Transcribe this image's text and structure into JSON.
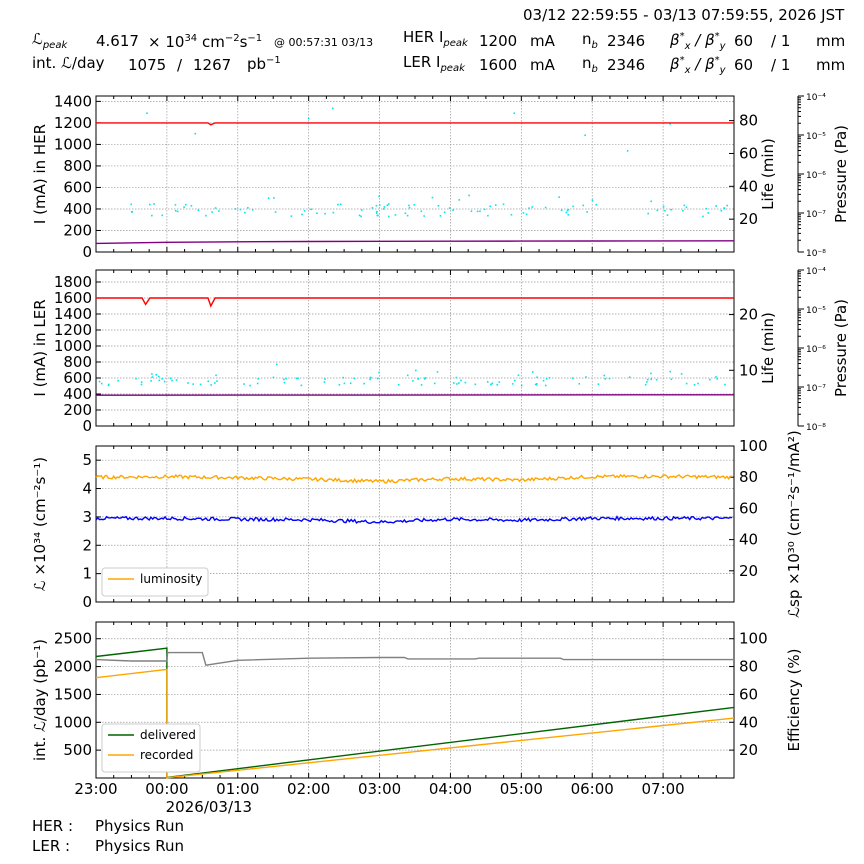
{
  "header": {
    "time_range": "03/12 22:59:55 - 03/13 07:59:55, 2026 JST",
    "lpeak_label": "ℒ",
    "lpeak_sub": "peak",
    "lpeak_value": "4.617",
    "lpeak_unit_pre": "× 10",
    "lpeak_unit_exp": "34",
    "lpeak_unit_cm": "cm",
    "lpeak_unit_cm_exp": "−2",
    "lpeak_unit_s": "s",
    "lpeak_unit_s_exp": "−1",
    "lpeak_time": "@ 00:57:31 03/13",
    "intl_label": "int. ℒ/day",
    "intl_value": "1075",
    "intl_sep": "/",
    "intl_total": "1267",
    "intl_unit": "pb",
    "intl_unit_exp": "−1",
    "her_label": "HER I",
    "her_sub": "peak",
    "her_value": "1200",
    "her_unit": "mA",
    "ler_label": "LER I",
    "ler_sub": "peak",
    "ler_value": "1600",
    "ler_unit": "mA",
    "nb_label": "n",
    "nb_sub": "b",
    "her_nb": "2346",
    "ler_nb": "2346",
    "beta_label": "β",
    "beta_sup": "*",
    "beta_x": "x",
    "beta_sep": " / β",
    "beta_y": "y",
    "her_beta_x": "60",
    "her_beta_y": "/ 1",
    "ler_beta_x": "60",
    "ler_beta_y": "/ 1",
    "beta_unit": "mm"
  },
  "footer": {
    "her_label": "HER :",
    "her_status": "Physics Run",
    "ler_label": "LER :",
    "ler_status": "Physics Run"
  },
  "chart_data": [
    {
      "type": "line",
      "id": "her",
      "x_ticks": [
        "23:00",
        "00:00",
        "01:00",
        "02:00",
        "03:00",
        "04:00",
        "05:00",
        "06:00",
        "07:00"
      ],
      "xlim_hours": [
        23.0,
        32.0
      ],
      "ylabel": "I (mA) in HER",
      "ylim": [
        0,
        1450
      ],
      "yticks": [
        0,
        200,
        400,
        600,
        800,
        1000,
        1200,
        1400
      ],
      "y2label": "Life (min)",
      "y2lim": [
        0,
        95
      ],
      "y2ticks": [
        20,
        40,
        60,
        80
      ],
      "y3label": "Pressure (Pa)",
      "y3ticks": [
        "10⁻⁸",
        "10⁻⁷",
        "10⁻⁶",
        "10⁻⁵",
        "10⁻⁴"
      ],
      "series": [
        {
          "color": "#ff0000",
          "axis": "y",
          "values": [
            [
              23.0,
              1200
            ],
            [
              24.5,
              1200
            ],
            [
              24.58,
              1200
            ],
            [
              24.62,
              1182
            ],
            [
              24.68,
              1200
            ],
            [
              28.0,
              1200
            ],
            [
              32.0,
              1200
            ]
          ]
        },
        {
          "color": "#800080",
          "axis": "y",
          "values": [
            [
              23.0,
              80
            ],
            [
              24.0,
              90
            ],
            [
              25.0,
              95
            ],
            [
              26.0,
              98
            ],
            [
              27.0,
              99
            ],
            [
              28.0,
              100
            ],
            [
              29.0,
              101
            ],
            [
              30.0,
              102
            ],
            [
              31.0,
              103
            ],
            [
              32.0,
              104
            ]
          ]
        }
      ],
      "scatter": {
        "color": "#00e5ee",
        "axis": "y",
        "mean": 390,
        "spread": 60,
        "outliers": [
          [
            23.72,
            1290
          ],
          [
            26.34,
            1335
          ],
          [
            26.0,
            1240
          ],
          [
            28.9,
            1290
          ],
          [
            24.4,
            1100
          ],
          [
            29.9,
            1085
          ],
          [
            30.5,
            940
          ],
          [
            31.1,
            1190
          ]
        ]
      }
    },
    {
      "type": "line",
      "id": "ler",
      "ylabel": "I (mA) in LER",
      "ylim": [
        0,
        1950
      ],
      "yticks": [
        0,
        200,
        400,
        600,
        800,
        1000,
        1200,
        1400,
        1600,
        1800
      ],
      "y2label": "Life (min)",
      "y2lim": [
        0,
        28
      ],
      "y2ticks": [
        10,
        20
      ],
      "y3label": "Pressure (Pa)",
      "y3ticks": [
        "10⁻⁸",
        "10⁻⁷",
        "10⁻⁶",
        "10⁻⁵",
        "10⁻⁴"
      ],
      "series": [
        {
          "color": "#ff0000",
          "axis": "y",
          "values": [
            [
              23.0,
              1600
            ],
            [
              23.65,
              1600
            ],
            [
              23.7,
              1520
            ],
            [
              23.76,
              1600
            ],
            [
              24.58,
              1600
            ],
            [
              24.62,
              1500
            ],
            [
              24.68,
              1600
            ],
            [
              32.0,
              1600
            ]
          ]
        },
        {
          "color": "#800080",
          "axis": "y",
          "values": [
            [
              23.0,
              385
            ],
            [
              32.0,
              390
            ]
          ]
        }
      ],
      "scatter": {
        "color": "#00e5ee",
        "axis": "y",
        "mean": 560,
        "spread": 55,
        "outliers": [
          [
            25.55,
            770
          ],
          [
            23.85,
            640
          ],
          [
            31.1,
            680
          ]
        ]
      }
    },
    {
      "type": "line",
      "id": "lumi",
      "ylabel": "ℒ ×10³⁴ (cm⁻²s⁻¹)",
      "ylim": [
        0,
        5.5
      ],
      "yticks": [
        0,
        1,
        2,
        3,
        4,
        5
      ],
      "y2label": "ℒsp ×10³⁰ (cm⁻²s⁻¹/mA²)",
      "y2lim": [
        0,
        100
      ],
      "y2ticks": [
        20,
        40,
        60,
        80,
        100
      ],
      "legend": {
        "position": "lower-left",
        "entries": [
          {
            "name": "luminosity",
            "color": "#ffa500"
          }
        ]
      },
      "series": [
        {
          "name": "luminosity",
          "color": "#ffa500",
          "axis": "y",
          "values": [
            [
              23.0,
              4.4
            ],
            [
              24.0,
              4.42
            ],
            [
              25.0,
              4.38
            ],
            [
              26.0,
              4.33
            ],
            [
              27.0,
              4.25
            ],
            [
              28.0,
              4.35
            ],
            [
              29.0,
              4.3
            ],
            [
              30.0,
              4.42
            ],
            [
              31.0,
              4.43
            ],
            [
              32.0,
              4.4
            ]
          ]
        },
        {
          "color": "#0000ff",
          "axis": "y",
          "values": [
            [
              23.0,
              2.95
            ],
            [
              24.0,
              2.95
            ],
            [
              25.0,
              2.92
            ],
            [
              26.0,
              2.9
            ],
            [
              27.0,
              2.82
            ],
            [
              28.0,
              2.92
            ],
            [
              29.0,
              2.88
            ],
            [
              30.0,
              2.95
            ],
            [
              31.0,
              2.95
            ],
            [
              32.0,
              2.95
            ]
          ]
        }
      ]
    },
    {
      "type": "line",
      "id": "intl",
      "ylabel": "int. ℒ/day (pb⁻¹)",
      "ylim": [
        0,
        2800
      ],
      "yticks": [
        500,
        1000,
        1500,
        2000,
        2500
      ],
      "y2label": "Efficiency (%)",
      "y2lim": [
        0,
        112
      ],
      "y2ticks": [
        20,
        40,
        60,
        80,
        100
      ],
      "xlabel_date": "2026/03/13",
      "legend": {
        "position": "lower-left",
        "entries": [
          {
            "name": "delivered",
            "color": "#006400"
          },
          {
            "name": "recorded",
            "color": "#ffa500"
          }
        ]
      },
      "series": [
        {
          "name": "delivered",
          "color": "#006400",
          "axis": "y",
          "values": [
            [
              23.0,
              2180
            ],
            [
              24.0,
              2330
            ],
            [
              24.0,
              10
            ],
            [
              32.0,
              1267
            ]
          ]
        },
        {
          "name": "recorded",
          "color": "#ffa500",
          "axis": "y",
          "values": [
            [
              23.0,
              1800
            ],
            [
              24.0,
              1950
            ],
            [
              24.0,
              5
            ],
            [
              32.0,
              1075
            ]
          ]
        },
        {
          "name": "efficiency",
          "color": "#808080",
          "axis": "y2",
          "values": [
            [
              23.0,
              85
            ],
            [
              23.5,
              84
            ],
            [
              24.0,
              84
            ],
            [
              24.01,
              90
            ],
            [
              24.5,
              90
            ],
            [
              24.55,
              81
            ],
            [
              25.0,
              84.5
            ],
            [
              26.0,
              86
            ],
            [
              27.0,
              86.5
            ],
            [
              27.35,
              86.5
            ],
            [
              27.4,
              85.5
            ],
            [
              28.0,
              85.5
            ],
            [
              28.35,
              85.5
            ],
            [
              28.4,
              86
            ],
            [
              29.0,
              86
            ],
            [
              29.55,
              86
            ],
            [
              29.6,
              85
            ],
            [
              30.0,
              85
            ],
            [
              31.0,
              85
            ],
            [
              32.0,
              85
            ]
          ]
        }
      ]
    }
  ]
}
